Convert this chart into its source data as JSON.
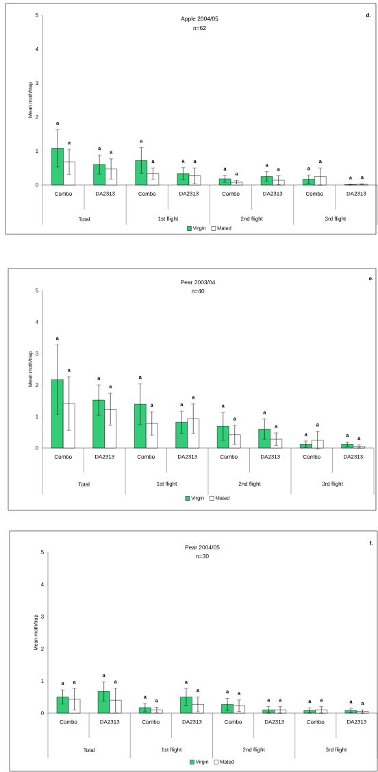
{
  "chart_data": [
    {
      "type": "bar",
      "title": "Apple 2004/05",
      "subtitle": "n=62",
      "ylabel": "Mean moth/trap",
      "categories": [
        "Combo",
        "DA2313",
        "Combo",
        "DA2313",
        "Combo",
        "DA2313",
        "Combo",
        "DA2313"
      ],
      "ylim": [
        0,
        5
      ],
      "yticks": [
        0,
        1,
        2,
        3,
        4,
        5
      ],
      "legend": "bottom",
      "annotations": [
        "d.",
        "Total",
        "1st flight",
        "2nd flight",
        "3rd flight",
        "a",
        "a",
        "a",
        "a",
        "a",
        "a",
        "a",
        "a",
        "a",
        "a",
        "a",
        "a",
        "a",
        "a",
        "a",
        "a"
      ],
      "series": [
        {
          "name": "Virgin",
          "color": "#33cc77",
          "values": [
            1.08,
            0.6,
            0.72,
            0.33,
            0.18,
            0.25,
            0.17,
            0.01
          ],
          "errors": [
            0.55,
            0.28,
            0.38,
            0.18,
            0.1,
            0.14,
            0.12,
            0.01
          ]
        },
        {
          "name": "Mated",
          "color": "#ffffff",
          "values": [
            0.68,
            0.47,
            0.33,
            0.27,
            0.08,
            0.14,
            0.25,
            0.02
          ],
          "errors": [
            0.37,
            0.3,
            0.17,
            0.23,
            0.05,
            0.13,
            0.25,
            0.01
          ]
        }
      ]
    },
    {
      "type": "bar",
      "title": "Pear 2003/04",
      "subtitle": "n=40",
      "ylabel": "Mean moth/trap",
      "categories": [
        "Combo",
        "DA2313",
        "Combo",
        "DA2313",
        "Combo",
        "DA2313",
        "Combo",
        "DA2313"
      ],
      "ylim": [
        0,
        5
      ],
      "yticks": [
        0,
        1,
        2,
        3,
        4,
        5
      ],
      "legend": "bottom",
      "annotations": [
        "e.",
        "Total",
        "1st flight",
        "2nd flight",
        "3rd flight",
        "a",
        "a",
        "a",
        "a",
        "a",
        "a",
        "a",
        "a",
        "a",
        "a",
        "a",
        "a",
        "a",
        "a",
        "a",
        "a"
      ],
      "series": [
        {
          "name": "Virgin",
          "color": "#33cc77",
          "values": [
            2.17,
            1.52,
            1.39,
            0.82,
            0.69,
            0.6,
            0.12,
            0.12
          ],
          "errors": [
            1.1,
            0.48,
            0.65,
            0.35,
            0.44,
            0.32,
            0.1,
            0.07
          ]
        },
        {
          "name": "Mated",
          "color": "#ffffff",
          "values": [
            1.41,
            1.23,
            0.78,
            0.93,
            0.42,
            0.28,
            0.25,
            0.05
          ],
          "errors": [
            0.85,
            0.51,
            0.37,
            0.47,
            0.3,
            0.2,
            0.28,
            0.05
          ]
        }
      ]
    },
    {
      "type": "bar",
      "title": "Pear 2004/05",
      "subtitle": "n=30",
      "ylabel": "Mean moth/trap",
      "categories": [
        "Combo",
        "DA2313",
        "Combo",
        "DA2313",
        "Combo",
        "DA2313",
        "Combo",
        "DA2313"
      ],
      "ylim": [
        0,
        5
      ],
      "yticks": [
        0,
        1,
        2,
        3,
        4,
        5
      ],
      "legend": "bottom",
      "annotations": [
        "f.",
        "Total",
        "1st flight",
        "2nd flight",
        "3rd flight",
        "a",
        "a",
        "a",
        "a",
        "a",
        "a",
        "a",
        "a",
        "a",
        "a",
        "a",
        "a",
        "a",
        "a",
        "a",
        "a"
      ],
      "series": [
        {
          "name": "Virgin",
          "color": "#33cc77",
          "values": [
            0.5,
            0.67,
            0.17,
            0.5,
            0.27,
            0.1,
            0.08,
            0.08
          ],
          "errors": [
            0.22,
            0.3,
            0.13,
            0.26,
            0.19,
            0.1,
            0.08,
            0.07
          ]
        },
        {
          "name": "Mated",
          "color": "#ffffff",
          "values": [
            0.43,
            0.4,
            0.1,
            0.27,
            0.23,
            0.1,
            0.1,
            0.05
          ],
          "errors": [
            0.33,
            0.37,
            0.08,
            0.23,
            0.18,
            0.1,
            0.1,
            0.05
          ]
        }
      ]
    }
  ]
}
